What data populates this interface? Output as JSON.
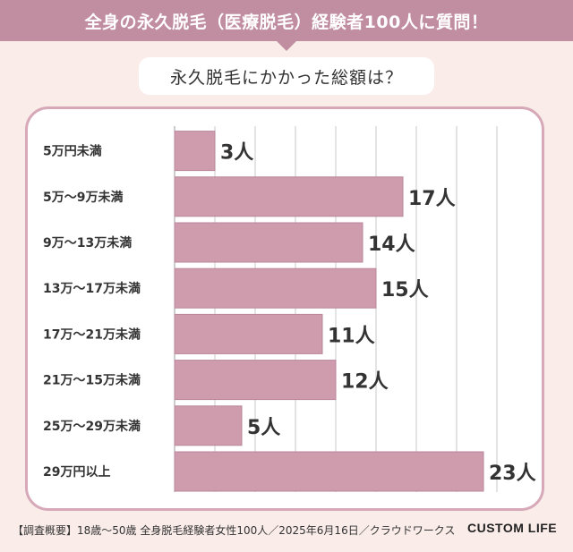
{
  "header": {
    "title": "全身の永久脱毛（医療脱毛）経験者100人に質問！",
    "question": "永久脱毛にかかった総額は？"
  },
  "footer": {
    "note": "【調査概要】18歳〜50歳 全身脱毛経験者女性100人／2025年6月16日／クラウドワークス",
    "brand": "CUSTOM LIFE"
  },
  "colors": {
    "banner": "#c18da0",
    "bar": "#cf9cae",
    "bar_stroke": "#b9869a",
    "panel_border": "#d7a9b8",
    "background": "#f9ece9"
  },
  "chart_data": {
    "type": "bar",
    "orientation": "horizontal",
    "categories": [
      "5万円未満",
      "5万〜9万未満",
      "9万〜13万未満",
      "13万〜17万未満",
      "17万〜21万未満",
      "21万〜15万未満",
      "25万〜29万未満",
      "29万円以上"
    ],
    "values": [
      3,
      17,
      14,
      15,
      11,
      12,
      5,
      23
    ],
    "value_labels": [
      "3人",
      "17人",
      "14人",
      "15人",
      "11人",
      "12人",
      "5人",
      "23人"
    ],
    "xlim": [
      0,
      25
    ],
    "grid": true
  }
}
